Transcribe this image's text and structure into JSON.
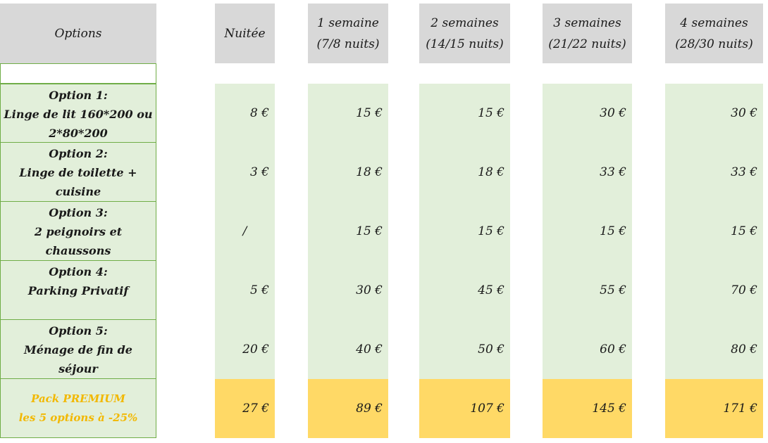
{
  "headers": {
    "options": "Options",
    "nuitee": "Nuitée",
    "w1": [
      "1 semaine",
      "(7/8 nuits)"
    ],
    "w2": [
      "2 semaines",
      "(14/15 nuits)"
    ],
    "w3": [
      "3 semaines",
      "(21/22 nuits)"
    ],
    "w4": [
      "4 semaines",
      "(28/30 nuits)"
    ]
  },
  "rows": [
    {
      "label": [
        "Option 1:",
        "Linge de lit 160*200 ou",
        "2*80*200"
      ],
      "values": [
        "8 €",
        "15 €",
        "15 €",
        "30 €",
        "30 €"
      ]
    },
    {
      "label": [
        "Option 2:",
        "Linge de toilette +",
        "cuisine"
      ],
      "values": [
        "3 €",
        "18 €",
        "18 €",
        "33 €",
        "33 €"
      ]
    },
    {
      "label": [
        "Option 3:",
        "2 peignoirs et",
        "chaussons"
      ],
      "values": [
        "/",
        "15 €",
        "15 €",
        "15 €",
        "15 €"
      ]
    },
    {
      "label": [
        "Option 4:",
        "Parking Privatif"
      ],
      "values": [
        "5 €",
        "30 €",
        "45 €",
        "55 €",
        "70 €"
      ]
    },
    {
      "label": [
        "Option 5:",
        "Ménage de fin de",
        "séjour"
      ],
      "values": [
        "20 €",
        "40 €",
        "50 €",
        "60 €",
        "80 €"
      ]
    }
  ],
  "pack": {
    "label": [
      "Pack PREMIUM",
      "les 5 options à  -25%"
    ],
    "values": [
      "27 €",
      "89 €",
      "107 €",
      "145 €",
      "171 €"
    ]
  },
  "colors": {
    "header_bg": "#d8d8d8",
    "option_bg": "#e2efda",
    "option_border": "#70ad47",
    "premium_bg": "#ffd966",
    "premium_text": "#f2b800"
  }
}
